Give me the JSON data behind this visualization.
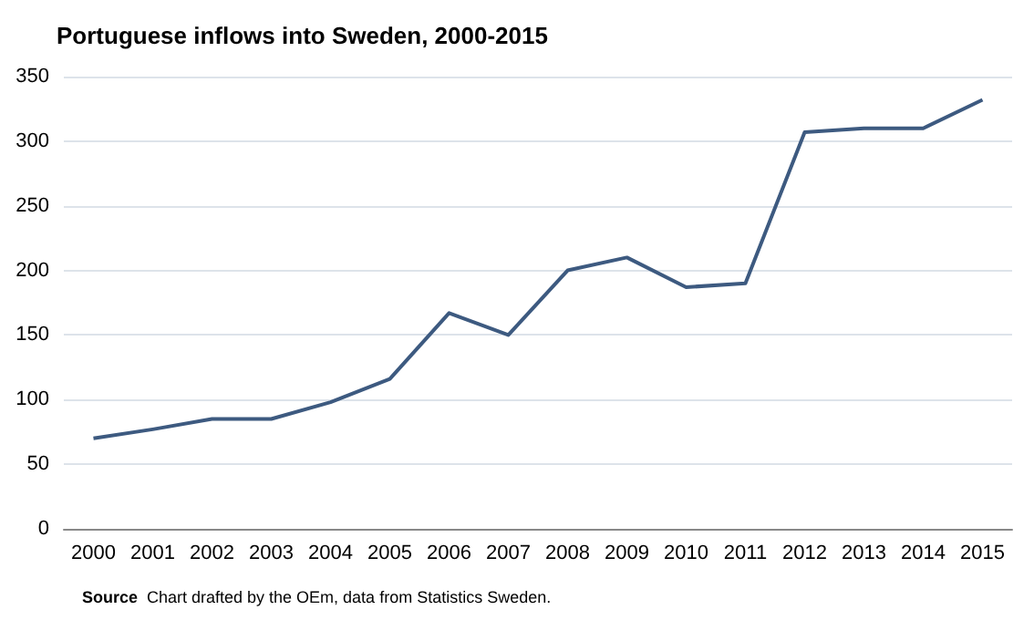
{
  "chart_data": {
    "type": "line",
    "title": "Portuguese inflows into Sweden, 2000-2015",
    "categories": [
      "2000",
      "2001",
      "2002",
      "2003",
      "2004",
      "2005",
      "2006",
      "2007",
      "2008",
      "2009",
      "2010",
      "2011",
      "2012",
      "2013",
      "2014",
      "2015"
    ],
    "series": [
      {
        "color": "#3d5a80",
        "values": [
          70,
          77,
          85,
          85,
          98,
          116,
          167,
          150,
          200,
          210,
          187,
          190,
          307,
          310,
          310,
          332
        ]
      }
    ],
    "ylim": [
      0,
      350
    ],
    "yticks": [
      0,
      50,
      100,
      150,
      200,
      250,
      300,
      350
    ],
    "grid": "y",
    "marker": "none",
    "line_style": "solid",
    "annotations": [
      "Source Chart drafted by the OEm, data from Statistics Sweden."
    ]
  }
}
